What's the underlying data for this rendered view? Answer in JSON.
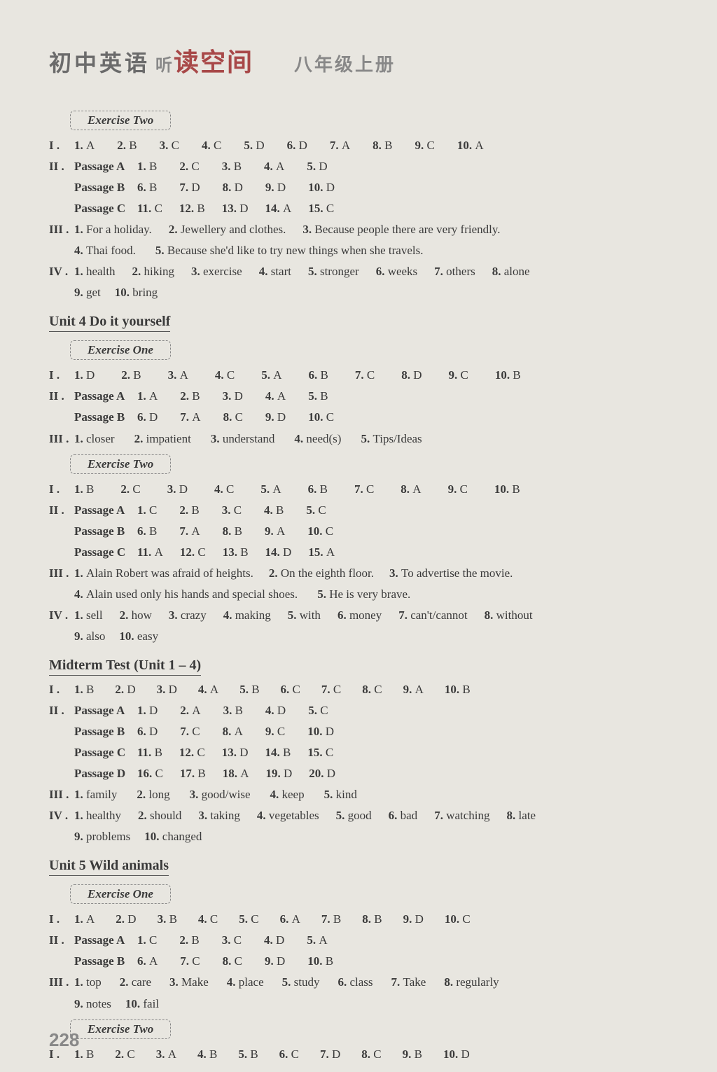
{
  "header": {
    "cn1": "初中英语",
    "logo_small": "听",
    "logo_main": "读空间",
    "grade": "八年级上册"
  },
  "page_number": "228",
  "sections": [
    {
      "exercise_label": "Exercise Two",
      "blocks": [
        {
          "roman": "I .",
          "type": "mc",
          "items": [
            [
              "1.",
              "A"
            ],
            [
              "2.",
              "B"
            ],
            [
              "3.",
              "C"
            ],
            [
              "4.",
              "C"
            ],
            [
              "5.",
              "D"
            ],
            [
              "6.",
              "D"
            ],
            [
              "7.",
              "A"
            ],
            [
              "8.",
              "B"
            ],
            [
              "9.",
              "C"
            ],
            [
              "10.",
              "A"
            ]
          ],
          "gap": 32
        },
        {
          "roman": "II .",
          "type": "passage",
          "label": "Passage A",
          "items": [
            [
              "1.",
              "B"
            ],
            [
              "2.",
              "C"
            ],
            [
              "3.",
              "B"
            ],
            [
              "4.",
              "A"
            ],
            [
              "5.",
              "D"
            ]
          ],
          "gap": 32
        },
        {
          "roman": "",
          "type": "passage",
          "label": "Passage B",
          "items": [
            [
              "6.",
              "B"
            ],
            [
              "7.",
              "D"
            ],
            [
              "8.",
              "D"
            ],
            [
              "9.",
              "D"
            ],
            [
              "10.",
              "D"
            ]
          ],
          "gap": 32
        },
        {
          "roman": "",
          "type": "passage",
          "label": "Passage C",
          "items": [
            [
              "11.",
              "C"
            ],
            [
              "12.",
              "B"
            ],
            [
              "13.",
              "D"
            ],
            [
              "14.",
              "A"
            ],
            [
              "15.",
              "C"
            ]
          ],
          "gap": 24
        },
        {
          "roman": "III .",
          "type": "text",
          "items": [
            [
              "1.",
              "For a holiday."
            ],
            [
              "2.",
              "Jewellery and clothes."
            ],
            [
              "3.",
              "Because people there are very friendly."
            ]
          ],
          "gap": 24
        },
        {
          "roman": "",
          "type": "text",
          "indent": true,
          "items": [
            [
              "4.",
              "Thai food."
            ],
            [
              "5.",
              "Because she'd like to try new things when she travels."
            ]
          ],
          "gap": 28
        },
        {
          "roman": "IV .",
          "type": "text",
          "items": [
            [
              "1.",
              "health"
            ],
            [
              "2.",
              "hiking"
            ],
            [
              "3.",
              "exercise"
            ],
            [
              "4.",
              "start"
            ],
            [
              "5.",
              "stronger"
            ],
            [
              "6.",
              "weeks"
            ],
            [
              "7.",
              "others"
            ],
            [
              "8.",
              "alone"
            ]
          ],
          "gap": 24
        },
        {
          "roman": "",
          "type": "text",
          "indent": true,
          "items": [
            [
              "9.",
              "get"
            ],
            [
              "10.",
              "bring"
            ]
          ],
          "gap": 20
        }
      ]
    },
    {
      "unit_title": "Unit 4   Do it yourself",
      "exercise_label": "Exercise One",
      "blocks": [
        {
          "roman": "I .",
          "type": "mc",
          "items": [
            [
              "1.",
              "D"
            ],
            [
              "2.",
              "B"
            ],
            [
              "3.",
              "A"
            ],
            [
              "4.",
              "C"
            ],
            [
              "5.",
              "A"
            ],
            [
              "6.",
              "B"
            ],
            [
              "7.",
              "C"
            ],
            [
              "8.",
              "D"
            ],
            [
              "9.",
              "C"
            ],
            [
              "10.",
              "B"
            ]
          ],
          "gap": 38
        },
        {
          "roman": "II .",
          "type": "passage",
          "label": "Passage A",
          "items": [
            [
              "1.",
              "A"
            ],
            [
              "2.",
              "B"
            ],
            [
              "3.",
              "D"
            ],
            [
              "4.",
              "A"
            ],
            [
              "5.",
              "B"
            ]
          ],
          "gap": 32
        },
        {
          "roman": "",
          "type": "passage",
          "label": "Passage B",
          "items": [
            [
              "6.",
              "D"
            ],
            [
              "7.",
              "A"
            ],
            [
              "8.",
              "C"
            ],
            [
              "9.",
              "D"
            ],
            [
              "10.",
              "C"
            ]
          ],
          "gap": 32
        },
        {
          "roman": "III .",
          "type": "text",
          "items": [
            [
              "1.",
              "closer"
            ],
            [
              "2.",
              "impatient"
            ],
            [
              "3.",
              "understand"
            ],
            [
              "4.",
              "need(s)"
            ],
            [
              "5.",
              "Tips/Ideas"
            ]
          ],
          "gap": 28
        }
      ]
    },
    {
      "exercise_label": "Exercise Two",
      "blocks": [
        {
          "roman": "I .",
          "type": "mc",
          "items": [
            [
              "1.",
              "B"
            ],
            [
              "2.",
              "C"
            ],
            [
              "3.",
              "D"
            ],
            [
              "4.",
              "C"
            ],
            [
              "5.",
              "A"
            ],
            [
              "6.",
              "B"
            ],
            [
              "7.",
              "C"
            ],
            [
              "8.",
              "A"
            ],
            [
              "9.",
              "C"
            ],
            [
              "10.",
              "B"
            ]
          ],
          "gap": 38
        },
        {
          "roman": "II .",
          "type": "passage",
          "label": "Passage A",
          "items": [
            [
              "1.",
              "C"
            ],
            [
              "2.",
              "B"
            ],
            [
              "3.",
              "C"
            ],
            [
              "4.",
              "B"
            ],
            [
              "5.",
              "C"
            ]
          ],
          "gap": 32
        },
        {
          "roman": "",
          "type": "passage",
          "label": "Passage B",
          "items": [
            [
              "6.",
              "B"
            ],
            [
              "7.",
              "A"
            ],
            [
              "8.",
              "B"
            ],
            [
              "9.",
              "A"
            ],
            [
              "10.",
              "C"
            ]
          ],
          "gap": 32
        },
        {
          "roman": "",
          "type": "passage",
          "label": "Passage C",
          "items": [
            [
              "11.",
              "A"
            ],
            [
              "12.",
              "C"
            ],
            [
              "13.",
              "B"
            ],
            [
              "14.",
              "D"
            ],
            [
              "15.",
              "A"
            ]
          ],
          "gap": 24
        },
        {
          "roman": "III .",
          "type": "text",
          "items": [
            [
              "1.",
              "Alain Robert was afraid of heights."
            ],
            [
              "2.",
              "On the eighth floor."
            ],
            [
              "3.",
              "To advertise the movie."
            ]
          ],
          "gap": 22
        },
        {
          "roman": "",
          "type": "text",
          "indent": true,
          "items": [
            [
              "4.",
              "Alain used only his hands and special shoes."
            ],
            [
              "5.",
              "He is very brave."
            ]
          ],
          "gap": 28
        },
        {
          "roman": "IV .",
          "type": "text",
          "items": [
            [
              "1.",
              "sell"
            ],
            [
              "2.",
              "how"
            ],
            [
              "3.",
              "crazy"
            ],
            [
              "4.",
              "making"
            ],
            [
              "5.",
              "with"
            ],
            [
              "6.",
              "money"
            ],
            [
              "7.",
              "can't/cannot"
            ],
            [
              "8.",
              "without"
            ]
          ],
          "gap": 24
        },
        {
          "roman": "",
          "type": "text",
          "indent": true,
          "items": [
            [
              "9.",
              "also"
            ],
            [
              "10.",
              "easy"
            ]
          ],
          "gap": 20
        }
      ]
    },
    {
      "unit_title": "Midterm Test (Unit 1 – 4)",
      "blocks": [
        {
          "roman": "I .",
          "type": "mc",
          "items": [
            [
              "1.",
              "B"
            ],
            [
              "2.",
              "D"
            ],
            [
              "3.",
              "D"
            ],
            [
              "4.",
              "A"
            ],
            [
              "5.",
              "B"
            ],
            [
              "6.",
              "C"
            ],
            [
              "7.",
              "C"
            ],
            [
              "8.",
              "C"
            ],
            [
              "9.",
              "A"
            ],
            [
              "10.",
              "B"
            ]
          ],
          "gap": 30
        },
        {
          "roman": "II .",
          "type": "passage",
          "label": "Passage A",
          "items": [
            [
              "1.",
              "D"
            ],
            [
              "2.",
              "A"
            ],
            [
              "3.",
              "B"
            ],
            [
              "4.",
              "D"
            ],
            [
              "5.",
              "C"
            ]
          ],
          "gap": 32
        },
        {
          "roman": "",
          "type": "passage",
          "label": "Passage B",
          "items": [
            [
              "6.",
              "D"
            ],
            [
              "7.",
              "C"
            ],
            [
              "8.",
              "A"
            ],
            [
              "9.",
              "C"
            ],
            [
              "10.",
              "D"
            ]
          ],
          "gap": 32
        },
        {
          "roman": "",
          "type": "passage",
          "label": "Passage C",
          "items": [
            [
              "11.",
              "B"
            ],
            [
              "12.",
              "C"
            ],
            [
              "13.",
              "D"
            ],
            [
              "14.",
              "B"
            ],
            [
              "15.",
              "C"
            ]
          ],
          "gap": 24
        },
        {
          "roman": "",
          "type": "passage",
          "label": "Passage D",
          "items": [
            [
              "16.",
              "C"
            ],
            [
              "17.",
              "B"
            ],
            [
              "18.",
              "A"
            ],
            [
              "19.",
              "D"
            ],
            [
              "20.",
              "D"
            ]
          ],
          "gap": 24
        },
        {
          "roman": "III .",
          "type": "text",
          "items": [
            [
              "1.",
              "family"
            ],
            [
              "2.",
              "long"
            ],
            [
              "3.",
              "good/wise"
            ],
            [
              "4.",
              "keep"
            ],
            [
              "5.",
              "kind"
            ]
          ],
          "gap": 28
        },
        {
          "roman": "IV .",
          "type": "text",
          "items": [
            [
              "1.",
              "healthy"
            ],
            [
              "2.",
              "should"
            ],
            [
              "3.",
              "taking"
            ],
            [
              "4.",
              "vegetables"
            ],
            [
              "5.",
              "good"
            ],
            [
              "6.",
              "bad"
            ],
            [
              "7.",
              "watching"
            ],
            [
              "8.",
              "late"
            ]
          ],
          "gap": 24
        },
        {
          "roman": "",
          "type": "text",
          "indent": true,
          "items": [
            [
              "9.",
              "problems"
            ],
            [
              "10.",
              "changed"
            ]
          ],
          "gap": 20
        }
      ]
    },
    {
      "unit_title": "Unit 5   Wild animals",
      "exercise_label": "Exercise One",
      "blocks": [
        {
          "roman": "I .",
          "type": "mc",
          "items": [
            [
              "1.",
              "A"
            ],
            [
              "2.",
              "D"
            ],
            [
              "3.",
              "B"
            ],
            [
              "4.",
              "C"
            ],
            [
              "5.",
              "C"
            ],
            [
              "6.",
              "A"
            ],
            [
              "7.",
              "B"
            ],
            [
              "8.",
              "B"
            ],
            [
              "9.",
              "D"
            ],
            [
              "10.",
              "C"
            ]
          ],
          "gap": 30
        },
        {
          "roman": "II .",
          "type": "passage",
          "label": "Passage A",
          "items": [
            [
              "1.",
              "C"
            ],
            [
              "2.",
              "B"
            ],
            [
              "3.",
              "C"
            ],
            [
              "4.",
              "D"
            ],
            [
              "5.",
              "A"
            ]
          ],
          "gap": 32
        },
        {
          "roman": "",
          "type": "passage",
          "label": "Passage B",
          "items": [
            [
              "6.",
              "A"
            ],
            [
              "7.",
              "C"
            ],
            [
              "8.",
              "C"
            ],
            [
              "9.",
              "D"
            ],
            [
              "10.",
              "B"
            ]
          ],
          "gap": 32
        },
        {
          "roman": "III .",
          "type": "text",
          "items": [
            [
              "1.",
              "top"
            ],
            [
              "2.",
              "care"
            ],
            [
              "3.",
              "Make"
            ],
            [
              "4.",
              "place"
            ],
            [
              "5.",
              "study"
            ],
            [
              "6.",
              "class"
            ],
            [
              "7.",
              "Take"
            ],
            [
              "8.",
              "regularly"
            ]
          ],
          "gap": 26
        },
        {
          "roman": "",
          "type": "text",
          "indent": true,
          "items": [
            [
              "9.",
              "notes"
            ],
            [
              "10.",
              "fail"
            ]
          ],
          "gap": 20
        }
      ]
    },
    {
      "exercise_label": "Exercise Two",
      "blocks": [
        {
          "roman": "I .",
          "type": "mc",
          "items": [
            [
              "1.",
              "B"
            ],
            [
              "2.",
              "C"
            ],
            [
              "3.",
              "A"
            ],
            [
              "4.",
              "B"
            ],
            [
              "5.",
              "B"
            ],
            [
              "6.",
              "C"
            ],
            [
              "7.",
              "D"
            ],
            [
              "8.",
              "C"
            ],
            [
              "9.",
              "B"
            ],
            [
              "10.",
              "D"
            ]
          ],
          "gap": 30
        }
      ]
    }
  ]
}
